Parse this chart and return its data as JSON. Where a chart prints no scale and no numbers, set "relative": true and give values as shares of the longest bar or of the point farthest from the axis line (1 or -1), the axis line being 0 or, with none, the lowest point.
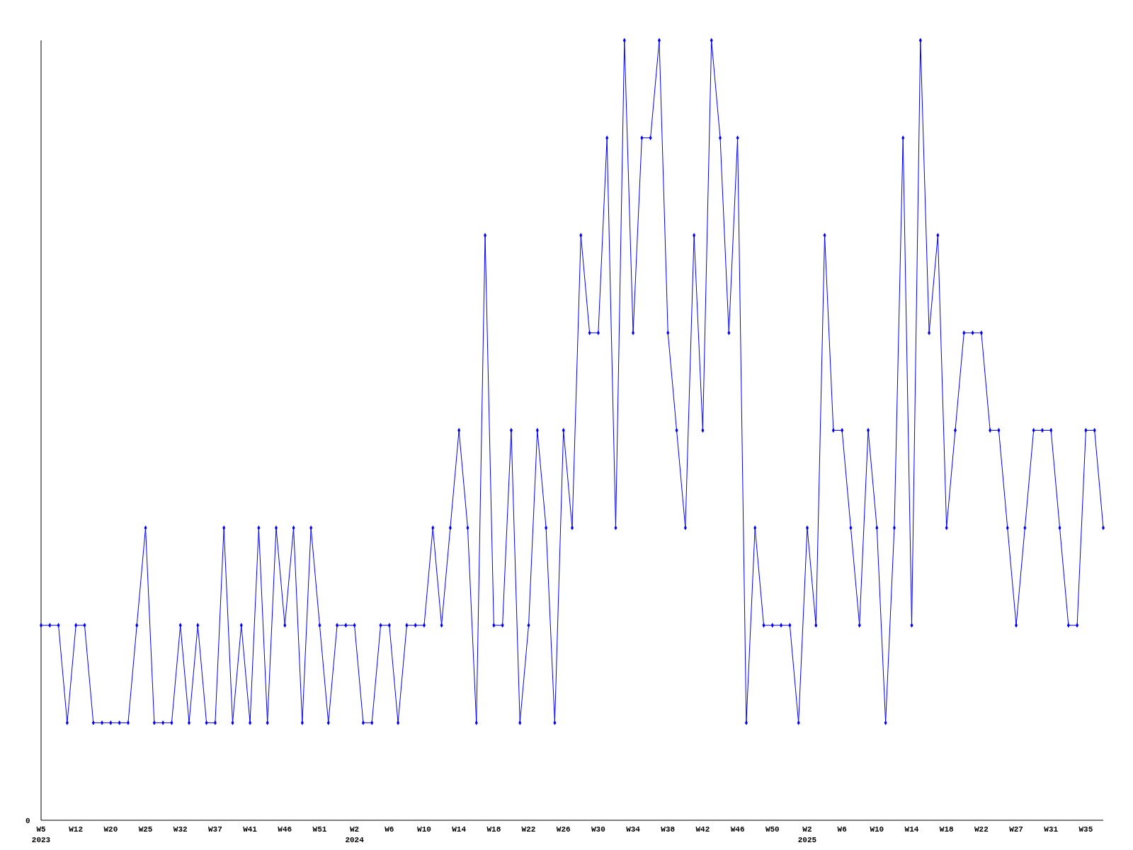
{
  "chart_data": {
    "type": "line",
    "relative": true,
    "marker": "diamond",
    "color": "#0000ff",
    "annotations": [
      "0"
    ],
    "categories": [
      "W5\n2023",
      null,
      null,
      null,
      "W12",
      null,
      null,
      null,
      "W20",
      null,
      null,
      null,
      "W25",
      null,
      null,
      null,
      "W32",
      null,
      null,
      null,
      "W37",
      null,
      null,
      null,
      "W41",
      null,
      null,
      null,
      "W46",
      null,
      null,
      null,
      "W51",
      null,
      null,
      null,
      "W2\n2024",
      null,
      null,
      null,
      "W6",
      null,
      null,
      null,
      "W10",
      null,
      null,
      null,
      "W14",
      null,
      null,
      null,
      "W18",
      null,
      null,
      null,
      "W22",
      null,
      null,
      null,
      "W26",
      null,
      null,
      null,
      "W30",
      null,
      null,
      null,
      "W34",
      null,
      null,
      null,
      "W38",
      null,
      null,
      null,
      "W42",
      null,
      null,
      null,
      "W46",
      null,
      null,
      null,
      "W50",
      null,
      null,
      null,
      "W2\n2025",
      null,
      null,
      null,
      "W6",
      null,
      null,
      null,
      "W10",
      null,
      null,
      null,
      "W14",
      null,
      null,
      null,
      "W18",
      null,
      null,
      null,
      "W22",
      null,
      null,
      null,
      "W27",
      null,
      null,
      null,
      "W31",
      null,
      null,
      null,
      "W35",
      null,
      null
    ],
    "values": [
      0.25,
      0.25,
      0.25,
      0.125,
      0.25,
      0.25,
      0.125,
      0.125,
      0.125,
      0.125,
      0.125,
      0.25,
      0.375,
      0.125,
      0.125,
      0.125,
      0.25,
      0.125,
      0.25,
      0.125,
      0.125,
      0.375,
      0.125,
      0.25,
      0.125,
      0.375,
      0.125,
      0.375,
      0.25,
      0.375,
      0.125,
      0.375,
      0.25,
      0.125,
      0.25,
      0.25,
      0.25,
      0.125,
      0.125,
      0.25,
      0.25,
      0.125,
      0.25,
      0.25,
      0.25,
      0.375,
      0.25,
      0.375,
      0.5,
      0.375,
      0.125,
      0.75,
      0.25,
      0.25,
      0.5,
      0.125,
      0.25,
      0.5,
      0.375,
      0.125,
      0.5,
      0.375,
      0.75,
      0.625,
      0.625,
      0.875,
      0.375,
      1,
      0.625,
      0.875,
      0.875,
      1,
      0.625,
      0.5,
      0.375,
      0.75,
      0.5,
      1,
      0.875,
      0.625,
      0.875,
      0.125,
      0.375,
      0.25,
      0.25,
      0.25,
      0.25,
      0.125,
      0.375,
      0.25,
      0.75,
      0.5,
      0.5,
      0.375,
      0.25,
      0.5,
      0.375,
      0.125,
      0.375,
      0.875,
      0.25,
      1,
      0.625,
      0.75,
      0.375,
      0.5,
      0.625,
      0.625,
      0.625,
      0.5,
      0.5,
      0.375,
      0.25,
      0.375,
      0.5,
      0.5,
      0.5,
      0.375,
      0.25,
      0.25,
      0.5,
      0.5,
      0.375
    ]
  }
}
